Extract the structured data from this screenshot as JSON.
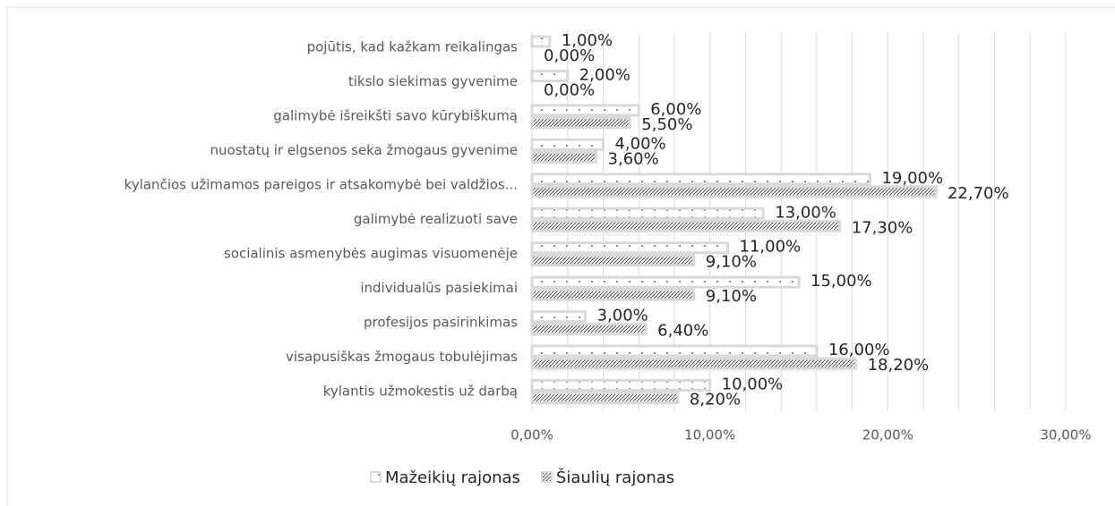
{
  "chart_data": {
    "type": "hbar",
    "categories": [
      "pojūtis, kad kažkam reikalingas",
      "tikslo siekimas gyvenime",
      "galimybė išreikšti savo kūrybiškumą",
      "nuostatų ir elgsenos seka žmogaus gyvenime",
      "kylančios užimamos pareigos ir atsakomybė bei valdžios...",
      "galimybė realizuoti save",
      "socialinis asmenybės augimas visuomenėje",
      "individualūs pasiekimai",
      "profesijos pasirinkimas",
      "visapusiškas žmogaus tobulėjimas",
      "kylantis užmokestis už darbą"
    ],
    "series": [
      {
        "name": "Mažeikių rajonas",
        "color": "#d9d9d9",
        "pattern": "dots",
        "values": [
          1,
          2,
          6,
          4,
          19,
          13,
          11,
          15,
          3,
          16,
          10
        ],
        "value_labels": [
          "1,00%",
          "2,00%",
          "6,00%",
          "4,00%",
          "19,00%",
          "13,00%",
          "11,00%",
          "15,00%",
          "3,00%",
          "16,00%",
          "10,00%"
        ]
      },
      {
        "name": "Šiaulių rajonas",
        "color": "#d9d9d9",
        "pattern": "hatch",
        "values": [
          0,
          0,
          5.5,
          3.6,
          22.7,
          17.3,
          9.1,
          9.1,
          6.4,
          18.2,
          8.2
        ],
        "value_labels": [
          "0,00%",
          "0,00%",
          "5,50%",
          "3,60%",
          "22,70%",
          "17,30%",
          "9,10%",
          "9,10%",
          "6,40%",
          "18,20%",
          "8,20%"
        ]
      }
    ],
    "xlim": [
      0,
      30
    ],
    "xticks": [
      {
        "value": 0,
        "label": "0,00%"
      },
      {
        "value": 10,
        "label": "10,00%"
      },
      {
        "value": 20,
        "label": "20,00%"
      },
      {
        "value": 30,
        "label": "30,00%"
      }
    ],
    "xgrid": [
      0,
      2,
      4,
      6,
      8,
      10,
      12,
      14,
      16,
      18,
      20,
      22,
      24,
      26,
      28,
      30
    ],
    "legend": "bottom"
  }
}
